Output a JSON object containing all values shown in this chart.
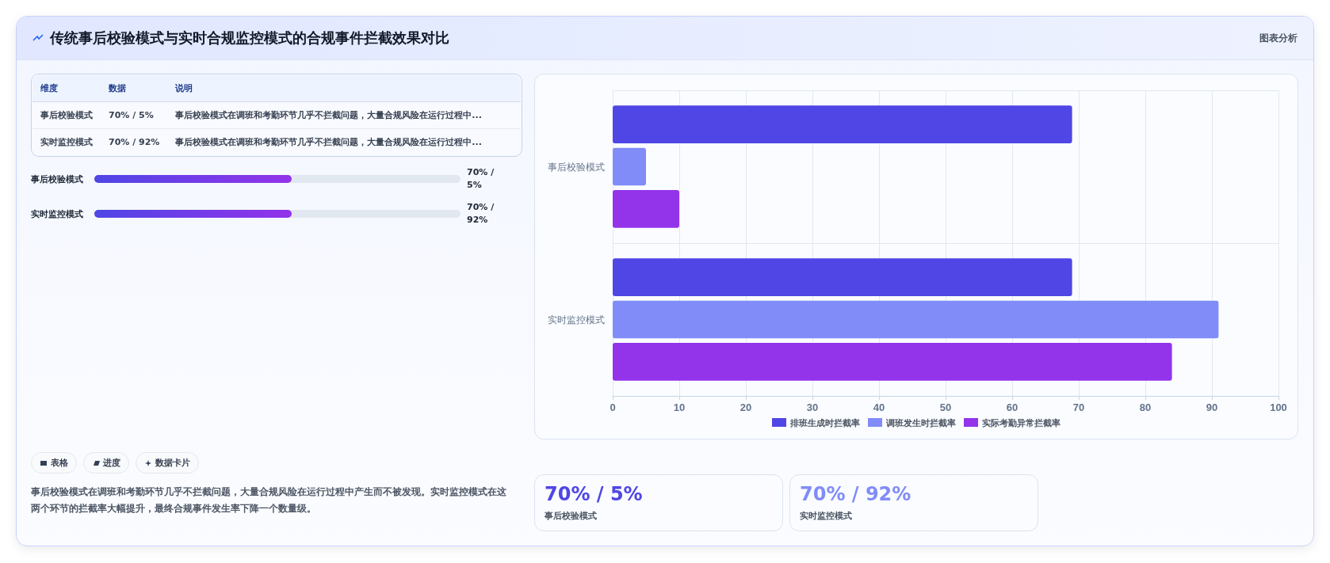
{
  "chart_data": [
    {
      "type": "other",
      "title": "传统事后校验模式与实时合规监控模式的合规事件拦截效果对比",
      "annotations": [
        "图表分析"
      ]
    },
    {
      "type": "bar",
      "orientation": "horizontal",
      "categories": [
        "事后校验模式",
        "实时监控模式"
      ],
      "series": [
        {
          "name": "排班生成时拦截率",
          "color": "#4f46e5",
          "values": [
            69,
            69
          ]
        },
        {
          "name": "调班发生时拦截率",
          "color": "#818cf8",
          "values": [
            5,
            91
          ]
        },
        {
          "name": "实际考勤异常拦截率",
          "color": "#9333ea",
          "values": [
            10,
            84
          ]
        }
      ],
      "xlim": [
        0,
        100
      ],
      "xticks": [
        0,
        10,
        20,
        30,
        40,
        50,
        60,
        70,
        80,
        90,
        100
      ],
      "grid": true,
      "legend": "bottom"
    },
    {
      "type": "other",
      "annotations": [
        "维度",
        "数据",
        "说明",
        "事后校验模式",
        "70% / 5%",
        "事后校验模式在调班和考勤环节几乎不拦截问题，大量合规风险在运行过程中...",
        "实时监控模式",
        "70% / 92%",
        "事后校验模式在调班和考勤环节几乎不拦截问题，大量合规风险在运行过程中...",
        "事后校验模式",
        "70% / 5%",
        "实时监控模式",
        "70% / 92%",
        "表格",
        "进度",
        "数据卡片",
        "事后校验模式在调班和考勤环节几乎不拦截问题，大量合规风险在运行过程中产生而不被发现。实时监控模式在这两个环节的拦截率大幅提升，最终合规事件发生率下降一个数量级。"
      ]
    },
    {
      "type": "other",
      "annotations": [
        "70% / 5%",
        "事后校验模式"
      ]
    },
    {
      "type": "other",
      "annotations": [
        "70% / 92%",
        "实时监控模式"
      ]
    }
  ]
}
